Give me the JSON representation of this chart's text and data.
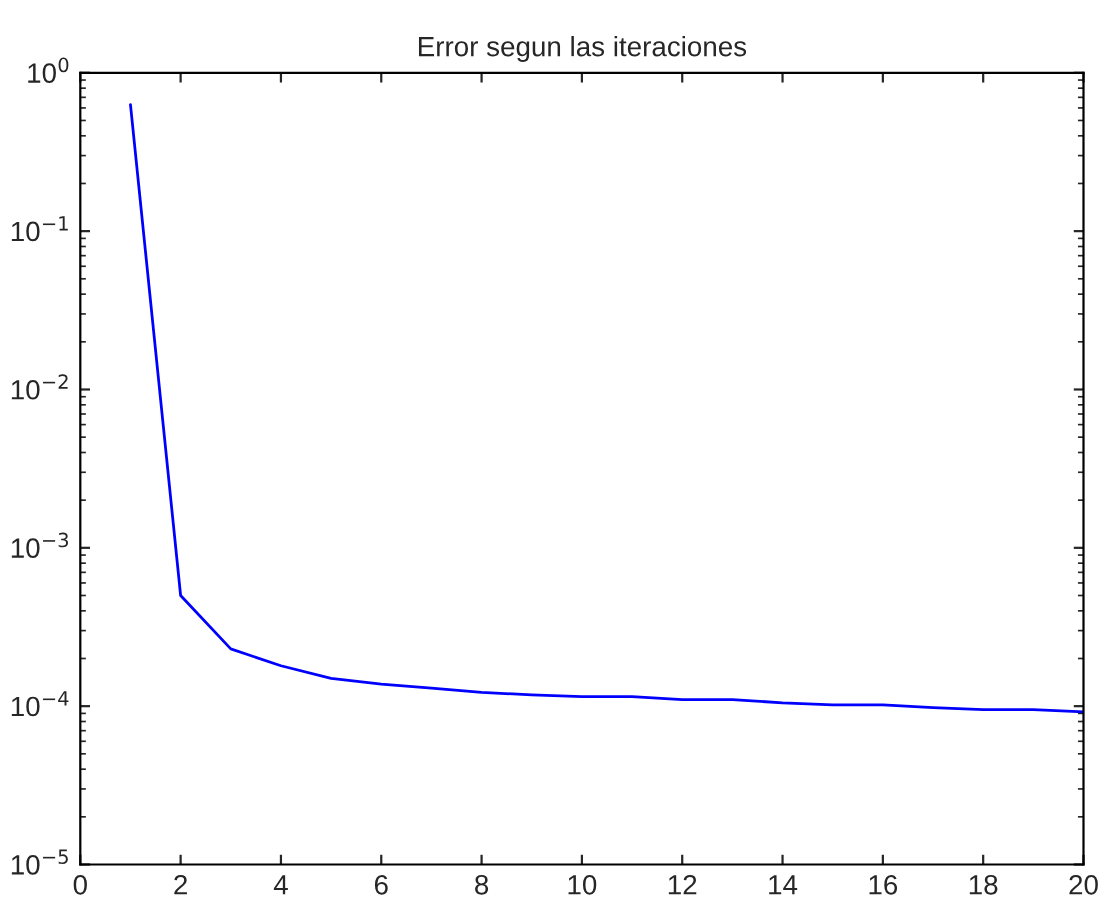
{
  "chart_data": {
    "type": "line",
    "title": "Error segun las iteraciones",
    "log": "y",
    "grid": false,
    "marker": "none",
    "line_style": "solid",
    "x": [
      1,
      2,
      3,
      4,
      5,
      6,
      7,
      8,
      9,
      10,
      11,
      12,
      13,
      14,
      15,
      16,
      17,
      18,
      19,
      20
    ],
    "series": [
      {
        "color": "#0000ff",
        "values": [
          0.63,
          0.0005,
          0.00023,
          0.00018,
          0.00015,
          0.000138,
          0.00013,
          0.000122,
          0.000118,
          0.000115,
          0.000115,
          0.00011,
          0.00011,
          0.000105,
          0.000102,
          0.000102,
          9.8e-05,
          9.5e-05,
          9.5e-05,
          9.2e-05
        ]
      }
    ],
    "xlim": [
      0,
      20
    ],
    "xticks": [
      0,
      2,
      4,
      6,
      8,
      10,
      12,
      14,
      16,
      18,
      20
    ],
    "ylim": [
      1e-05,
      1
    ],
    "yticks": [
      {
        "value": 1e-05,
        "label": "10$^{−5}$"
      },
      {
        "value": 0.0001,
        "label": "10$^{−4}$"
      },
      {
        "value": 0.001,
        "label": "10$^{−3}$"
      },
      {
        "value": 0.01,
        "label": "10$^{−2}$"
      },
      {
        "value": 0.1,
        "label": "10$^{−1}$"
      },
      {
        "value": 1,
        "label": "10$^{0}$"
      }
    ]
  }
}
